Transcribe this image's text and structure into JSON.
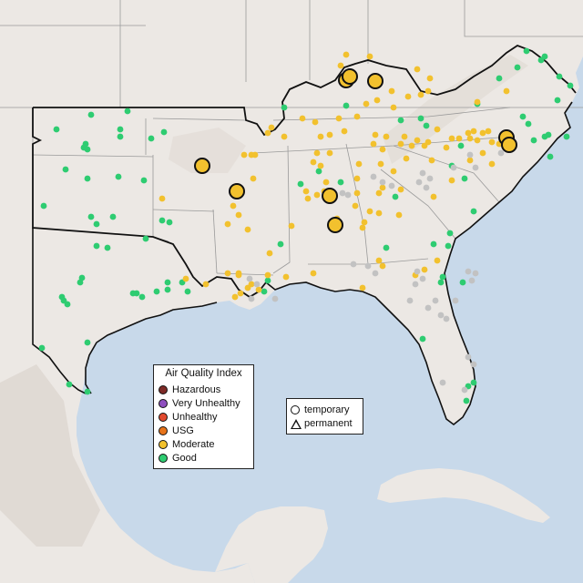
{
  "map": {
    "colors": {
      "water": "#c8d9ea",
      "land": "#ece8e4",
      "mountains": "#e0dad4",
      "state_borders": "#8f8f8f",
      "region_outline": "#111111"
    }
  },
  "legend": {
    "title": "Air Quality Index",
    "categories": [
      {
        "label": "Hazardous",
        "color": "#7e2b27"
      },
      {
        "label": "Very Unhealthy",
        "color": "#8f4fbf"
      },
      {
        "label": "Unhealthy",
        "color": "#e24a2f"
      },
      {
        "label": "USG",
        "color": "#e6731a"
      },
      {
        "label": "Moderate",
        "color": "#f2c12e"
      },
      {
        "label": "Good",
        "color": "#2ecc71"
      }
    ],
    "no_data_color": "#c2c2c2"
  },
  "monitor_types": {
    "temporary": "temporary",
    "permanent": "permanent",
    "temporary_symbol": "circle",
    "permanent_symbol": "triangle"
  },
  "large_markers": {
    "category": "Moderate",
    "type": "temporary",
    "count": 9
  }
}
